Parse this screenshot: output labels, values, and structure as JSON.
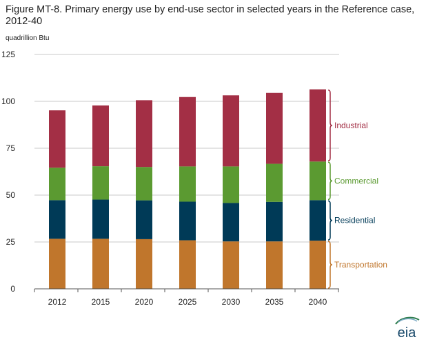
{
  "title": "Figure MT-8. Primary energy use by end-use sector in selected years in the Reference case, 2012-40",
  "logo_text": "eia",
  "colors": {
    "Transportation": "#c0762c",
    "Residential": "#003a57",
    "Commercial": "#5b9a31",
    "Industrial": "#a32f45",
    "grid": "#c8c8c8",
    "axis": "#555555"
  },
  "chart_data": {
    "type": "bar",
    "stacked": true,
    "categories": [
      "2012",
      "2015",
      "2020",
      "2025",
      "2030",
      "2035",
      "2040"
    ],
    "series": [
      {
        "name": "Transportation",
        "values": [
          26.7,
          26.7,
          26.5,
          25.9,
          25.3,
          25.3,
          25.7
        ]
      },
      {
        "name": "Residential",
        "values": [
          20.6,
          20.9,
          20.7,
          20.6,
          20.5,
          21.1,
          21.6
        ]
      },
      {
        "name": "Commercial",
        "values": [
          17.3,
          17.8,
          17.8,
          18.8,
          19.5,
          20.3,
          20.6
        ]
      },
      {
        "name": "Industrial",
        "values": [
          30.6,
          32.4,
          35.6,
          37.0,
          37.9,
          37.8,
          38.5
        ]
      }
    ],
    "ylabel": "quadrillion Btu",
    "ylim": [
      0,
      125
    ],
    "yticks": [
      0,
      25,
      50,
      75,
      100,
      125
    ],
    "grid": true,
    "legend": "right, bracketed labels beside 2040 bar"
  }
}
